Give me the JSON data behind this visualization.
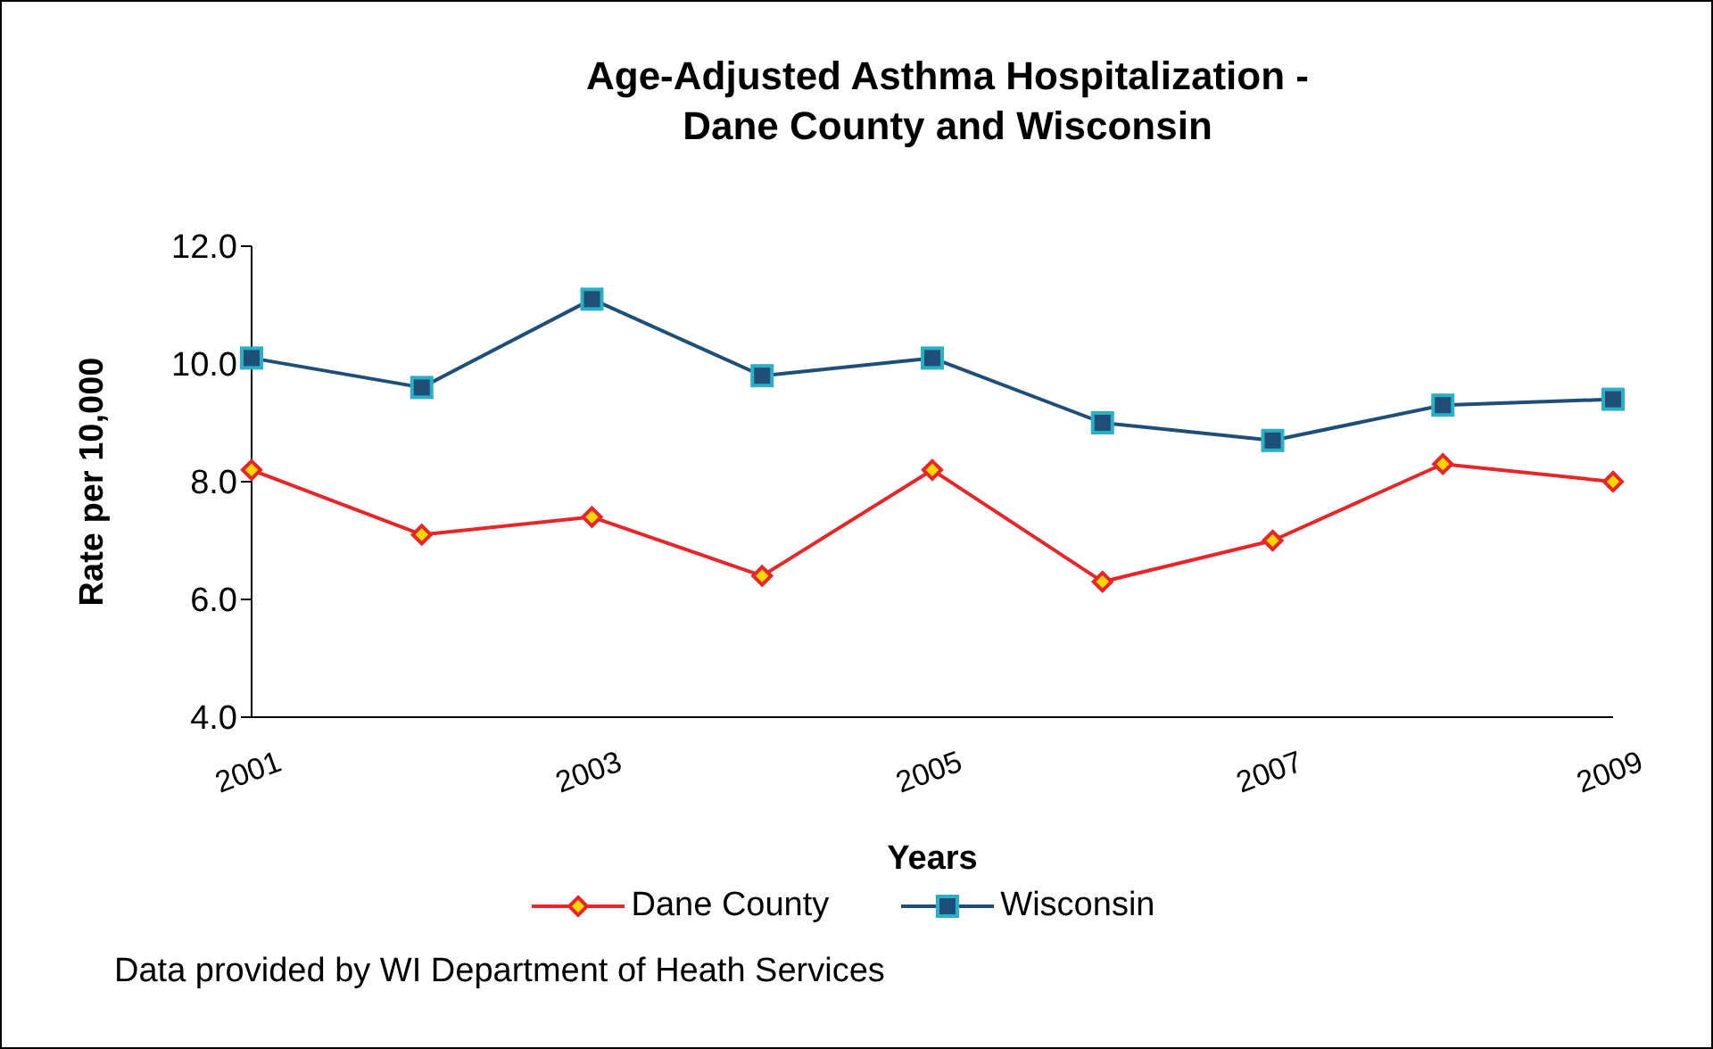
{
  "chart_data": {
    "type": "line",
    "title": "Age-Adjusted Asthma Hospitalization -\nDane County and Wisconsin",
    "xlabel": "Years",
    "ylabel": "Rate per 10,000",
    "categories": [
      "2001",
      null,
      "2003",
      null,
      "2005",
      null,
      "2007",
      null,
      "2009"
    ],
    "series": [
      {
        "name": "Dane County",
        "color": "#e8262a",
        "marker": "diamond",
        "values": [
          8.2,
          7.1,
          7.4,
          6.4,
          8.2,
          6.3,
          7.0,
          8.3,
          8.0
        ]
      },
      {
        "name": "Wisconsin",
        "color": "#1f4e79",
        "marker": "square",
        "values": [
          10.1,
          9.6,
          11.1,
          9.8,
          10.1,
          9.0,
          8.7,
          9.3,
          9.4
        ]
      }
    ],
    "ylim": [
      4,
      12
    ],
    "yticks": [
      {
        "value": 4,
        "label": "4.0"
      },
      {
        "value": 6,
        "label": "6.0"
      },
      {
        "value": 8,
        "label": "8.0"
      },
      {
        "value": 10,
        "label": "10.0"
      },
      {
        "value": 12,
        "label": "12.0"
      }
    ],
    "grid": false,
    "legend": "bottom",
    "annotations": [
      "Data provided by WI Department of Heath Services"
    ]
  }
}
